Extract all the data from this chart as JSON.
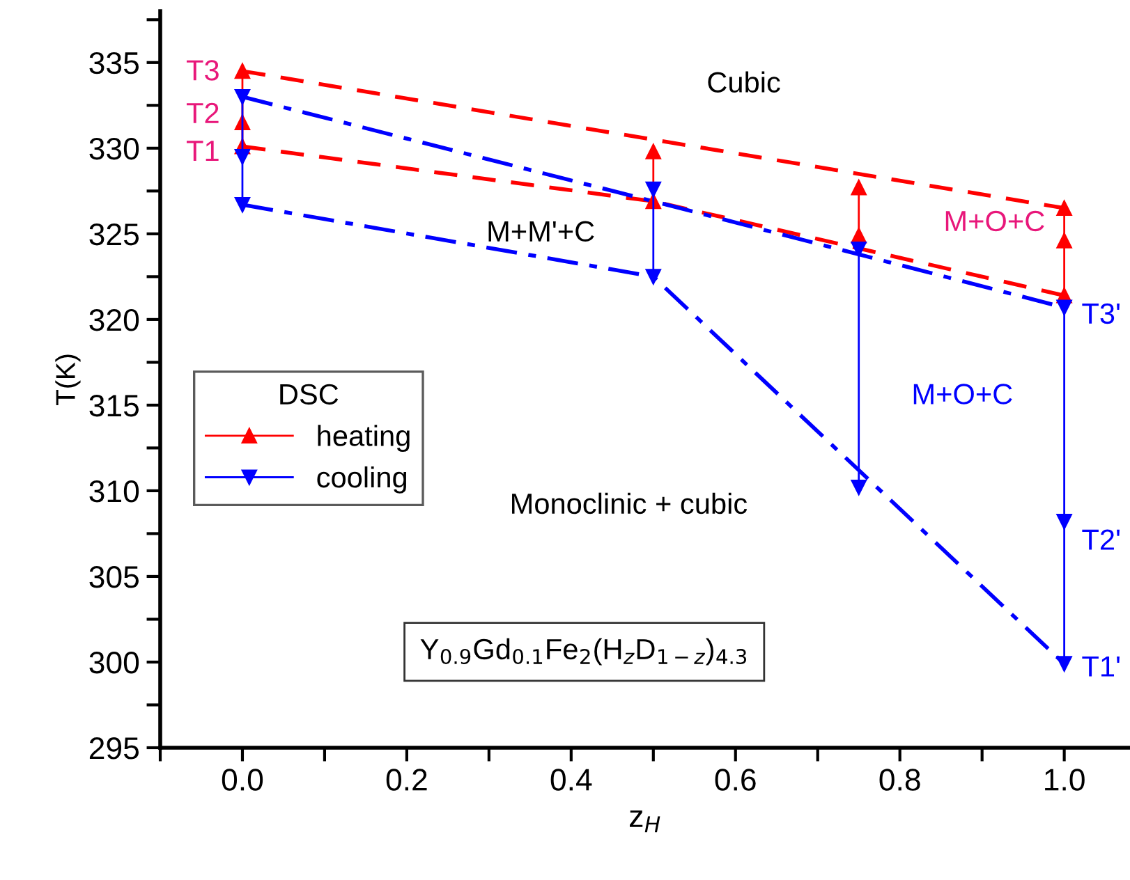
{
  "chart_data": {
    "type": "line",
    "xlabel": "z$_{H}$",
    "ylabel": "T(K)",
    "legend_title": "DSC",
    "legend": "center left",
    "grid": false,
    "xlim": [
      -0.1,
      1.08
    ],
    "ylim": [
      295,
      338
    ],
    "xticks": [
      {
        "value": -0.1,
        "label": null
      },
      {
        "value": 0,
        "label": "0.0"
      },
      {
        "value": 0.1,
        "label": null
      },
      0.2,
      {
        "value": 0.3,
        "label": null
      },
      0.4,
      {
        "value": 0.5,
        "label": null
      },
      0.6,
      {
        "value": 0.7,
        "label": null
      },
      0.8,
      {
        "value": 0.9,
        "label": null
      },
      {
        "value": 1,
        "label": "1.0"
      }
    ],
    "yticks": [
      295,
      {
        "value": 297.5,
        "label": null
      },
      300,
      {
        "value": 302.5,
        "label": null
      },
      305,
      {
        "value": 307.5,
        "label": null
      },
      310,
      {
        "value": 312.5,
        "label": null
      },
      315,
      {
        "value": 317.5,
        "label": null
      },
      320,
      {
        "value": 322.5,
        "label": null
      },
      325,
      {
        "value": 327.5,
        "label": null
      },
      330,
      {
        "value": 332.5,
        "label": null
      },
      335,
      {
        "value": 337.5,
        "label": null
      }
    ],
    "series": [
      {
        "name": "heating",
        "color": "#ff0000",
        "marker": "triangle",
        "line_style": "solid",
        "x": [
          0,
          0,
          0
        ],
        "values": [
          334.5,
          331.5,
          330.1
        ]
      },
      {
        "color": "#ff0000",
        "marker": "triangle",
        "line_style": "solid",
        "x": [
          0.5,
          0.5
        ],
        "values": [
          329.8,
          326.9
        ]
      },
      {
        "color": "#ff0000",
        "marker": "triangle",
        "line_style": "solid",
        "x": [
          0.75,
          0.75
        ],
        "values": [
          327.7,
          324.9
        ]
      },
      {
        "color": "#ff0000",
        "marker": "triangle",
        "line_style": "solid",
        "x": [
          1,
          1,
          1
        ],
        "values": [
          326.5,
          324.6,
          321.4
        ]
      },
      {
        "name": "cooling",
        "color": "#0000ff",
        "marker": "triangle_down",
        "line_style": "solid",
        "x": [
          0,
          0,
          0
        ],
        "values": [
          333.0,
          329.5,
          326.7
        ]
      },
      {
        "color": "#0000ff",
        "marker": "triangle_down",
        "line_style": "solid",
        "x": [
          0.5,
          0.5
        ],
        "values": [
          327.6,
          322.5
        ]
      },
      {
        "color": "#0000ff",
        "marker": "triangle_down",
        "line_style": "solid",
        "x": [
          0.75,
          0.75
        ],
        "values": [
          324.1,
          310.2
        ]
      },
      {
        "color": "#0000ff",
        "marker": "triangle_down",
        "line_style": "solid",
        "x": [
          1,
          1,
          1
        ],
        "values": [
          320.7,
          308.2,
          299.9
        ]
      },
      {
        "color": "#ff0000",
        "marker": "none",
        "line_style": "dashed",
        "x": [
          0,
          1
        ],
        "values": [
          334.5,
          326.5
        ]
      },
      {
        "color": "#ff0000",
        "marker": "none",
        "line_style": "dashed",
        "x": [
          0,
          0.5,
          1
        ],
        "values": [
          330.1,
          326.9,
          321.4
        ]
      },
      {
        "color": "#0000ff",
        "marker": "none",
        "line_style": "dashdot",
        "x": [
          0,
          0.5,
          1
        ],
        "values": [
          333.0,
          326.9,
          320.7
        ]
      },
      {
        "color": "#0000ff",
        "marker": "none",
        "line_style": "dashdot",
        "x": [
          0,
          0.5,
          1
        ],
        "values": [
          326.7,
          322.5,
          299.9
        ]
      }
    ],
    "annotations": [
      "T3",
      "T2",
      "T1",
      "Cubic",
      "M+M'+C",
      "M+O+C",
      "T3'",
      "M+O+C",
      "T2'",
      "T1'",
      "Monoclinic + cubic",
      "Y$_{0.9}$Gd$_{0.1}$Fe$_{2}$(H$_{z}$D$_{1−z}$)$_{4.3}$"
    ]
  }
}
